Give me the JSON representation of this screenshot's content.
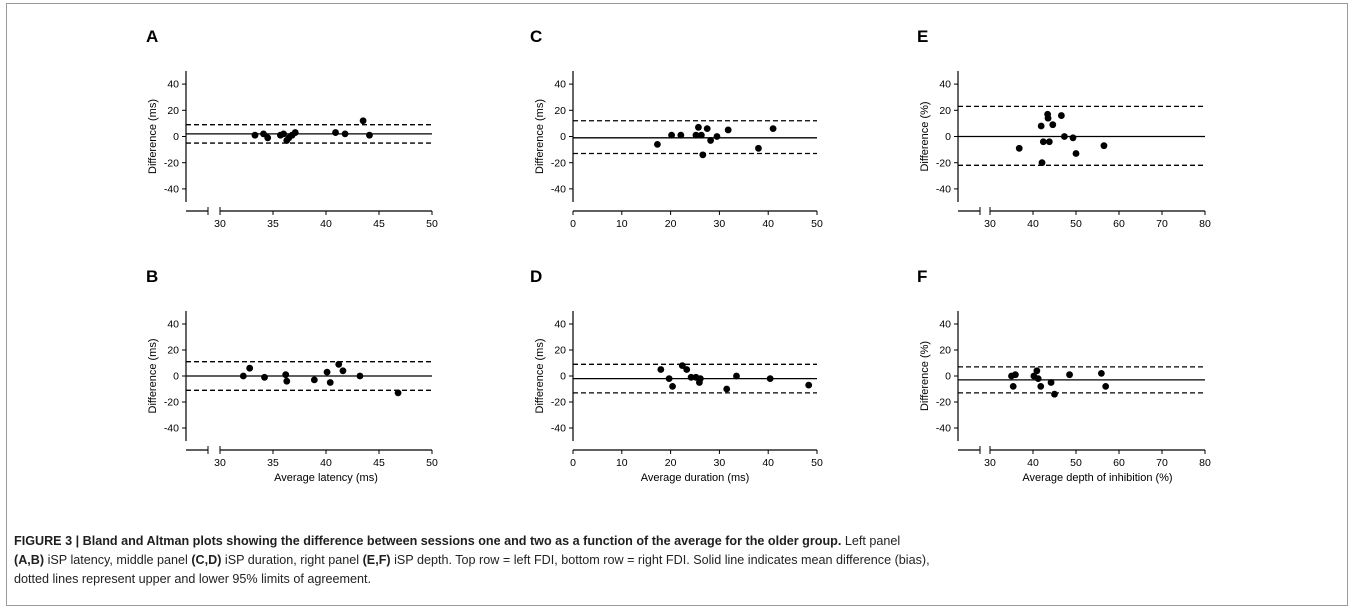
{
  "chart_data": [
    {
      "id": "A",
      "type": "scatter",
      "letter": "A",
      "xlabel": "",
      "ylabel": "Difference (ms)",
      "xlim": [
        30,
        50
      ],
      "ylim": [
        -50,
        50
      ],
      "xticks": [
        30,
        35,
        40,
        45,
        50
      ],
      "yticks": [
        -40,
        -20,
        0,
        20,
        40
      ],
      "axis_break": true,
      "bias": 2,
      "upper_loa": 9,
      "lower_loa": -5,
      "points": [
        [
          33.3,
          1
        ],
        [
          34.1,
          2
        ],
        [
          34.5,
          -1
        ],
        [
          35.7,
          1
        ],
        [
          36.0,
          2
        ],
        [
          36.3,
          -3
        ],
        [
          36.5,
          -1
        ],
        [
          36.8,
          1
        ],
        [
          37.1,
          3
        ],
        [
          40.9,
          3
        ],
        [
          41.8,
          2
        ],
        [
          43.5,
          12
        ],
        [
          44.1,
          1
        ]
      ]
    },
    {
      "id": "C",
      "type": "scatter",
      "letter": "C",
      "xlabel": "",
      "ylabel": "Difference (ms)",
      "xlim": [
        0,
        50
      ],
      "ylim": [
        -50,
        50
      ],
      "xticks": [
        0,
        10,
        20,
        30,
        40,
        50
      ],
      "yticks": [
        -40,
        -20,
        0,
        20,
        40
      ],
      "axis_break": false,
      "bias": -1,
      "upper_loa": 12,
      "lower_loa": -13,
      "points": [
        [
          17.3,
          -6
        ],
        [
          20.2,
          1
        ],
        [
          22.1,
          1
        ],
        [
          25.2,
          1
        ],
        [
          25.7,
          7
        ],
        [
          26.3,
          1
        ],
        [
          26.6,
          -14
        ],
        [
          27.5,
          6
        ],
        [
          28.2,
          -3
        ],
        [
          29.5,
          0
        ],
        [
          31.8,
          5
        ],
        [
          38.0,
          -9
        ],
        [
          41.0,
          6
        ]
      ]
    },
    {
      "id": "E",
      "type": "scatter",
      "letter": "E",
      "xlabel": "",
      "ylabel": "Difference (%)",
      "xlim": [
        30,
        80
      ],
      "ylim": [
        -50,
        50
      ],
      "xticks": [
        30,
        40,
        50,
        60,
        70,
        80
      ],
      "yticks": [
        -40,
        -20,
        0,
        20,
        40
      ],
      "axis_break": true,
      "bias": 0,
      "upper_loa": 23,
      "lower_loa": -22,
      "points": [
        [
          36.8,
          -9
        ],
        [
          41.9,
          8
        ],
        [
          42.1,
          -20
        ],
        [
          42.4,
          -4
        ],
        [
          43.4,
          17
        ],
        [
          43.5,
          14
        ],
        [
          43.8,
          -4
        ],
        [
          44.6,
          9
        ],
        [
          46.6,
          16
        ],
        [
          47.3,
          0
        ],
        [
          49.3,
          -1
        ],
        [
          50.0,
          -13
        ],
        [
          56.5,
          -7
        ]
      ]
    },
    {
      "id": "B",
      "type": "scatter",
      "letter": "B",
      "xlabel": "Average latency (ms)",
      "ylabel": "Difference (ms)",
      "xlim": [
        30,
        50
      ],
      "ylim": [
        -50,
        50
      ],
      "xticks": [
        30,
        35,
        40,
        45,
        50
      ],
      "yticks": [
        -40,
        -20,
        0,
        20,
        40
      ],
      "axis_break": true,
      "bias": 0,
      "upper_loa": 11,
      "lower_loa": -11,
      "points": [
        [
          32.2,
          0
        ],
        [
          32.8,
          6
        ],
        [
          34.2,
          -1
        ],
        [
          36.2,
          1
        ],
        [
          36.3,
          -4
        ],
        [
          38.9,
          -3
        ],
        [
          40.1,
          3
        ],
        [
          40.4,
          -5
        ],
        [
          41.2,
          9
        ],
        [
          41.6,
          4
        ],
        [
          43.2,
          0
        ],
        [
          46.8,
          -13
        ]
      ]
    },
    {
      "id": "D",
      "type": "scatter",
      "letter": "D",
      "xlabel": "Average duration (ms)",
      "ylabel": "Difference (ms)",
      "xlim": [
        0,
        50
      ],
      "ylim": [
        -50,
        50
      ],
      "xticks": [
        0,
        10,
        20,
        30,
        40,
        50
      ],
      "yticks": [
        -40,
        -20,
        0,
        20,
        40
      ],
      "axis_break": false,
      "bias": -2,
      "upper_loa": 9,
      "lower_loa": -13,
      "points": [
        [
          18.0,
          5
        ],
        [
          19.7,
          -2
        ],
        [
          20.4,
          -8
        ],
        [
          22.4,
          8
        ],
        [
          23.3,
          5
        ],
        [
          24.2,
          -1
        ],
        [
          25.2,
          -1
        ],
        [
          25.9,
          -5
        ],
        [
          26.1,
          -2
        ],
        [
          31.5,
          -10
        ],
        [
          33.5,
          0
        ],
        [
          40.4,
          -2
        ],
        [
          48.3,
          -7
        ]
      ]
    },
    {
      "id": "F",
      "type": "scatter",
      "letter": "F",
      "xlabel": "Average depth of inhibition (%)",
      "ylabel": "Difference (%)",
      "xlim": [
        30,
        80
      ],
      "ylim": [
        -50,
        50
      ],
      "xticks": [
        30,
        40,
        50,
        60,
        70,
        80
      ],
      "yticks": [
        -40,
        -20,
        0,
        20,
        40
      ],
      "axis_break": true,
      "bias": -3,
      "upper_loa": 7,
      "lower_loa": -13,
      "points": [
        [
          35.0,
          0
        ],
        [
          35.4,
          -8
        ],
        [
          35.9,
          1
        ],
        [
          40.2,
          0
        ],
        [
          40.9,
          4
        ],
        [
          41.2,
          -2
        ],
        [
          41.8,
          -8
        ],
        [
          44.2,
          -5
        ],
        [
          45.0,
          -14
        ],
        [
          48.5,
          1
        ],
        [
          55.9,
          2
        ],
        [
          56.9,
          -8
        ]
      ]
    }
  ],
  "caption": {
    "line1_bold": "FIGURE 3 | Bland and Altman plots showing the difference between sessions one and two as a function of the average for the older group.",
    "line1_rest": " Left panel",
    "ab": "(A,B)",
    "t_ab": " iSP latency, middle panel ",
    "cd": "(C,D)",
    "t_cd": " iSP duration, right panel ",
    "ef": "(E,F)",
    "t_ef": " iSP depth. Top row = left FDI, bottom row = right FDI. Solid line indicates mean difference (bias),",
    "line3": "dotted lines represent upper and lower 95% limits of agreement."
  }
}
